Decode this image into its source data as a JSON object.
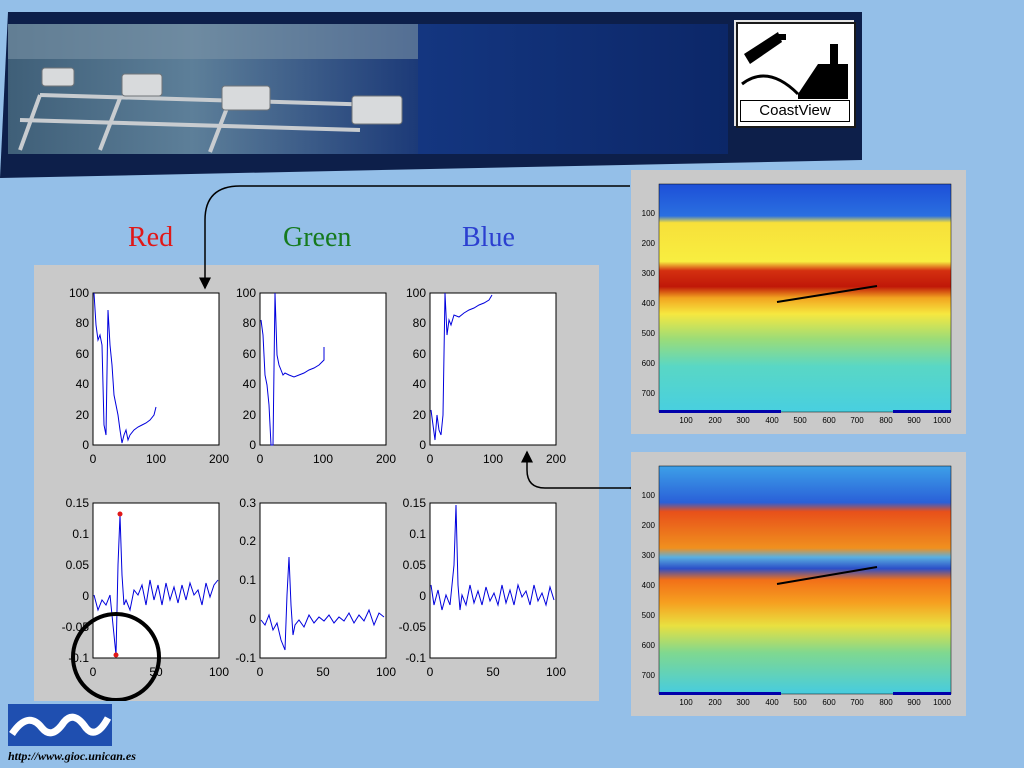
{
  "banner": {
    "logo_label": "CoastView"
  },
  "channels": [
    {
      "label": "Red",
      "color": "#e01818"
    },
    {
      "label": "Green",
      "color": "#157a1e"
    },
    {
      "label": "Blue",
      "color": "#2b3fd0"
    }
  ],
  "top_plots": {
    "y_ticks": [
      "100",
      "80",
      "60",
      "40",
      "20",
      "0"
    ],
    "x_ticks": [
      "0",
      "100",
      "200"
    ]
  },
  "bottom_plots": [
    {
      "y_ticks": [
        "0.15",
        "0.1",
        "0.05",
        "0",
        "-0.05",
        "-0.1"
      ],
      "x_ticks": [
        "0",
        "50",
        "100"
      ]
    },
    {
      "y_ticks": [
        "0.3",
        "0.2",
        "0.1",
        "0",
        "-0.1"
      ],
      "x_ticks": [
        "0",
        "50",
        "100"
      ]
    },
    {
      "y_ticks": [
        "0.15",
        "0.1",
        "0.05",
        "0",
        "-0.05",
        "-0.1"
      ],
      "x_ticks": [
        "0",
        "50",
        "100"
      ]
    }
  ],
  "images": {
    "y_ticks": [
      "100",
      "200",
      "300",
      "400",
      "500",
      "600",
      "700"
    ],
    "x_ticks": [
      "100",
      "200",
      "300",
      "400",
      "500",
      "600",
      "700",
      "800",
      "900",
      "1000"
    ]
  },
  "colors": {
    "background": "#94bfe8",
    "banner_dark": "#0d1f4a",
    "plot_line": "#0000dd",
    "marker": "#e01818"
  },
  "footer": {
    "url": "http://www.gioc.unican.es"
  }
}
